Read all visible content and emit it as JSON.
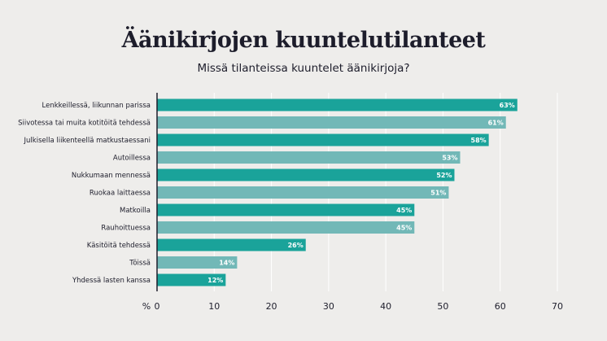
{
  "chart_data": {
    "type": "bar",
    "orientation": "horizontal",
    "title": "Äänikirjojen kuuntelutilanteet",
    "subtitle": "Missä tilanteissa kuuntelet äänikirjoja?",
    "axis_unit_label": "%",
    "categories": [
      "Lenkkeillessä, liikunnan parissa",
      "Siivotessa tai muita kotitöitä tehdessä",
      "Julkisella liikenteellä matkustaessani",
      "Autoillessa",
      "Nukkumaan mennessä",
      "Ruokaa laittaessa",
      "Matkoilla",
      "Rauhoittuessa",
      "Käsitöitä tehdessä",
      "Töissä",
      "Yhdessä lasten kanssa"
    ],
    "values": [
      63,
      61,
      58,
      53,
      52,
      51,
      45,
      45,
      26,
      14,
      12
    ],
    "value_labels": [
      "63%",
      "61%",
      "58%",
      "53%",
      "52%",
      "51%",
      "45%",
      "45%",
      "26%",
      "14%",
      "12%"
    ],
    "xlim": [
      0,
      70
    ],
    "xticks": [
      "0",
      "10",
      "20",
      "30",
      "40",
      "50",
      "60",
      "70"
    ],
    "grid": true,
    "colors": {
      "bar_dark": "#1aa39a",
      "bar_light": "#72b8b7",
      "grid": "#ffffff",
      "axis": "#1d1d2b",
      "background": "#eeedeb"
    }
  }
}
